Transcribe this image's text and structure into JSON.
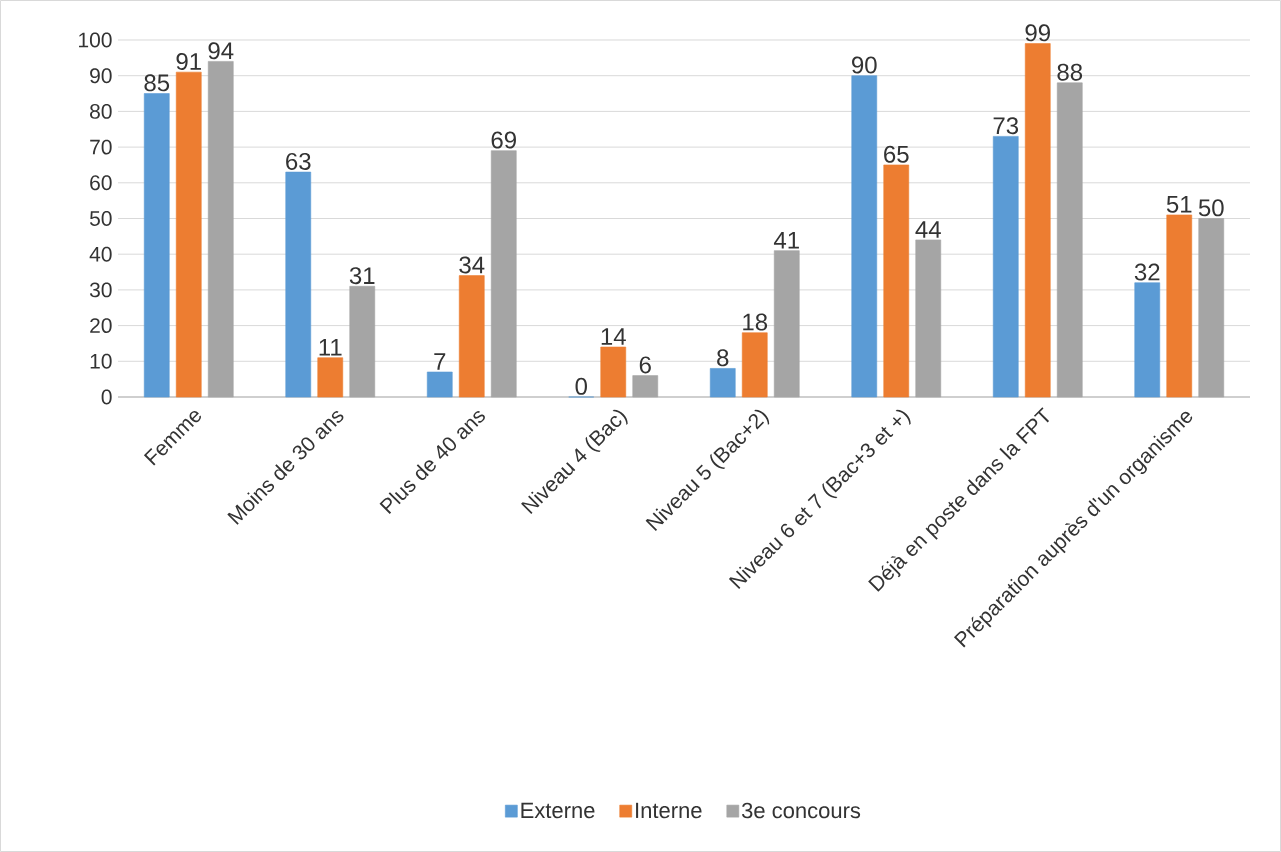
{
  "chart_data": {
    "type": "bar",
    "categories": [
      "Femme",
      "Moins de 30 ans",
      "Plus de 40 ans",
      "Niveau 4 (Bac)",
      "Niveau 5 (Bac+2)",
      "Niveau 6 et 7 (Bac+3 et +)",
      "Déjà en poste dans la FPT",
      "Préparation auprès d'un organisme"
    ],
    "series": [
      {
        "name": "Externe",
        "color": "#5b9bd5",
        "values": [
          85,
          63,
          7,
          0,
          8,
          90,
          73,
          32
        ]
      },
      {
        "name": "Interne",
        "color": "#ed7d31",
        "values": [
          91,
          11,
          34,
          14,
          18,
          65,
          99,
          51
        ]
      },
      {
        "name": "3e concours",
        "color": "#a5a5a5",
        "values": [
          94,
          31,
          69,
          6,
          41,
          44,
          88,
          50
        ]
      }
    ],
    "ylim": [
      0,
      100
    ],
    "yticks": [
      0,
      10,
      20,
      30,
      40,
      50,
      60,
      70,
      80,
      90,
      100
    ],
    "grid": "y",
    "legend": "bottom",
    "data_labels": true
  }
}
